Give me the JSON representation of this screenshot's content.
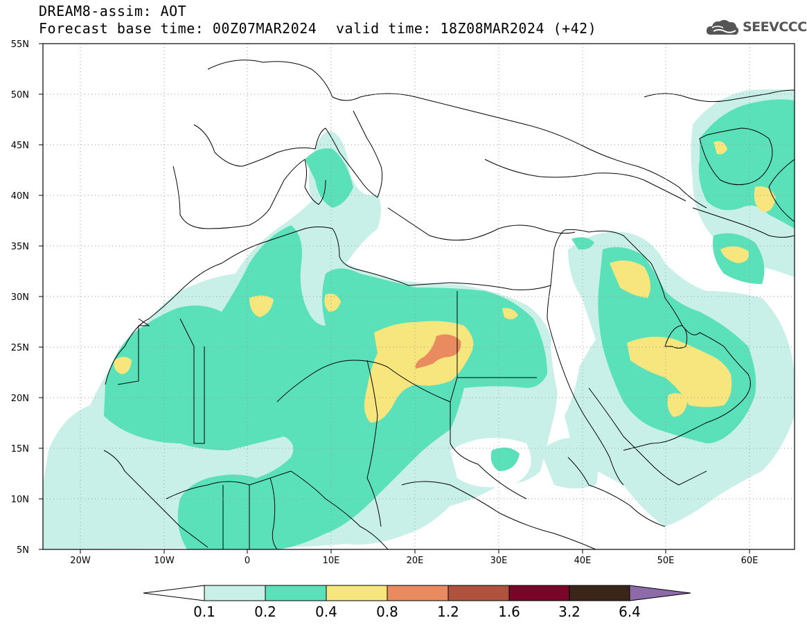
{
  "header": {
    "title": "DREAM8-assim: AOT",
    "base_time": "Forecast base time: 00Z07MAR2024",
    "valid_time": "valid time: 18Z08MAR2024 (+42)"
  },
  "logo": {
    "text": "SEEVCCC",
    "icon": "cloud-logo-icon"
  },
  "map": {
    "lat_labels": [
      "55N",
      "50N",
      "45N",
      "40N",
      "35N",
      "30N",
      "25N",
      "20N",
      "15N",
      "10N",
      "5N"
    ],
    "lon_labels": [
      "20W",
      "10W",
      "0",
      "10E",
      "20E",
      "30E",
      "40E",
      "50E",
      "60E"
    ],
    "lat_range": [
      5,
      55
    ],
    "lon_range": [
      -25,
      65
    ],
    "gridlines": "dotted"
  },
  "colorbar": {
    "labels": [
      "0.1",
      "0.2",
      "0.4",
      "0.8",
      "1.2",
      "1.6",
      "3.2",
      "6.4"
    ],
    "colors": [
      "#ffffff",
      "#c8f0e8",
      "#5ae1b9",
      "#f7e67e",
      "#e98b5e",
      "#b0523e",
      "#7a0528",
      "#3b2418",
      "#8c6ba8"
    ]
  },
  "colors": {
    "level_01": "#c8f0e8",
    "level_02": "#5ae1b9",
    "level_04": "#f7e67e",
    "level_08": "#e98b5e",
    "level_12": "#b0523e",
    "coastline": "#000000"
  }
}
